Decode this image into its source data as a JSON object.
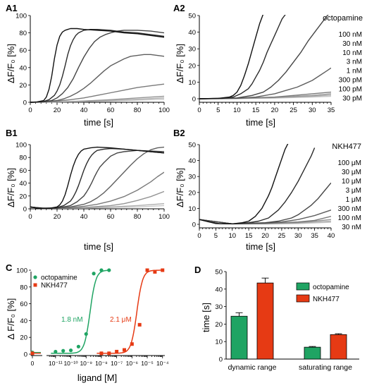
{
  "colors": {
    "octopamine": "#1fa463",
    "nkh": "#e63a14",
    "trace_dark": "#111111",
    "trace_light": "#c8c8c8",
    "bar_oct": "#1fa463",
    "bar_nkh": "#e63a14"
  },
  "chart_data": [
    {
      "id": "A1",
      "panel_label": "A1",
      "type": "line",
      "xlabel": "time [s]",
      "ylabel": "ΔF/F₀ [%]",
      "xlim": [
        0,
        100
      ],
      "ylim": [
        0,
        100
      ],
      "xticks": [
        0,
        20,
        40,
        60,
        80,
        100
      ],
      "yticks": [
        0,
        20,
        40,
        60,
        80,
        100
      ],
      "series": [
        {
          "x": [
            0,
            5,
            10,
            12,
            14,
            16,
            18,
            20,
            22,
            24,
            26,
            28,
            30,
            35,
            40,
            50,
            60,
            70,
            80,
            90,
            100
          ],
          "values": [
            0,
            0.5,
            2,
            6,
            15,
            30,
            50,
            66,
            76,
            81,
            83,
            84,
            85,
            85,
            84,
            83,
            82,
            80,
            79,
            77,
            75
          ]
        },
        {
          "x": [
            0,
            5,
            10,
            14,
            18,
            20,
            22,
            24,
            26,
            28,
            30,
            32,
            34,
            36,
            40,
            45,
            50,
            60,
            70,
            80,
            90,
            100
          ],
          "values": [
            0,
            0.3,
            1,
            3,
            8,
            13,
            20,
            30,
            42,
            55,
            65,
            72,
            77,
            80,
            83,
            84,
            84,
            83,
            81,
            80,
            78,
            76
          ]
        },
        {
          "x": [
            0,
            10,
            16,
            20,
            24,
            28,
            32,
            36,
            40,
            44,
            48,
            52,
            56,
            60,
            65,
            70,
            80,
            90,
            100
          ],
          "values": [
            0,
            0.5,
            2,
            5,
            10,
            17,
            27,
            40,
            52,
            62,
            70,
            75,
            78,
            80,
            82,
            83,
            83,
            82,
            80
          ]
        },
        {
          "x": [
            0,
            10,
            20,
            25,
            30,
            35,
            40,
            45,
            50,
            55,
            60,
            65,
            70,
            75,
            80,
            85,
            90,
            95,
            100
          ],
          "values": [
            0,
            0.5,
            2,
            4,
            7,
            11,
            16,
            22,
            29,
            36,
            42,
            46,
            50,
            53,
            54,
            55,
            55,
            54,
            53
          ]
        },
        {
          "x": [
            0,
            10,
            20,
            30,
            40,
            50,
            60,
            70,
            80,
            90,
            100
          ],
          "values": [
            0,
            0.5,
            1.5,
            3,
            5,
            8,
            11,
            14,
            17,
            19,
            21
          ]
        },
        {
          "x": [
            0,
            20,
            40,
            60,
            80,
            100
          ],
          "values": [
            0,
            0.5,
            1.5,
            3,
            5,
            7
          ]
        },
        {
          "x": [
            0,
            20,
            40,
            60,
            80,
            100
          ],
          "values": [
            0,
            0.5,
            1,
            2,
            3.5,
            5
          ]
        },
        {
          "x": [
            0,
            20,
            40,
            60,
            80,
            100
          ],
          "values": [
            0,
            0.3,
            0.8,
            1.5,
            2.5,
            3.5
          ]
        }
      ]
    },
    {
      "id": "A2",
      "panel_label": "A2",
      "type": "line",
      "xlabel": "time [s]",
      "ylabel": "ΔF/F₀ [%]",
      "xlim": [
        0,
        35
      ],
      "ylim": [
        0,
        50
      ],
      "xticks": [
        0,
        5,
        10,
        15,
        20,
        25,
        30,
        35
      ],
      "yticks": [
        0,
        10,
        20,
        30,
        40,
        50
      ],
      "legend_title": "octopamine",
      "concentrations": [
        "100 nM",
        "30 nM",
        "10 nM",
        "3 nM",
        "1 nM",
        "300 pM",
        "100 pM",
        "30 pM"
      ],
      "series": [
        {
          "x": [
            0,
            5,
            8,
            9,
            10,
            11,
            12,
            13,
            14,
            15,
            16,
            17
          ],
          "values": [
            0,
            0.2,
            1,
            2,
            4,
            8,
            14,
            21,
            29,
            37,
            45,
            51
          ]
        },
        {
          "x": [
            0,
            6,
            9,
            11,
            13,
            14,
            15,
            16,
            17,
            18,
            19,
            20,
            21,
            22,
            23
          ],
          "values": [
            0,
            0.2,
            1,
            3,
            6,
            9,
            13,
            17,
            22,
            28,
            33,
            38,
            43,
            48,
            51
          ]
        },
        {
          "x": [
            0,
            10,
            14,
            17,
            19,
            21,
            23,
            25,
            27,
            29,
            31,
            33,
            34,
            35
          ],
          "values": [
            0,
            0.5,
            2,
            4,
            7,
            11,
            16,
            22,
            28,
            35,
            41,
            47,
            50,
            52
          ]
        },
        {
          "x": [
            0,
            10,
            15,
            20,
            23,
            26,
            28,
            30,
            32,
            34,
            35
          ],
          "values": [
            0,
            0.3,
            1,
            3,
            5,
            7,
            9,
            11,
            14,
            17,
            18.5
          ]
        },
        {
          "x": [
            0,
            10,
            20,
            25,
            30,
            35
          ],
          "values": [
            0,
            0.3,
            1,
            2,
            3,
            4
          ]
        },
        {
          "x": [
            0,
            10,
            20,
            30,
            35
          ],
          "values": [
            0,
            0.2,
            0.8,
            2,
            3
          ]
        },
        {
          "x": [
            0,
            10,
            20,
            30,
            35
          ],
          "values": [
            0,
            0.2,
            0.6,
            1.5,
            2.2
          ]
        },
        {
          "x": [
            0,
            10,
            20,
            30,
            35
          ],
          "values": [
            0,
            0.1,
            0.4,
            1,
            1.5
          ]
        }
      ]
    },
    {
      "id": "B1",
      "panel_label": "B1",
      "type": "line",
      "xlabel": "time [s]",
      "ylabel": "ΔF/F₀ [%]",
      "xlim": [
        0,
        100
      ],
      "ylim": [
        0,
        100
      ],
      "xticks": [
        0,
        20,
        40,
        60,
        80,
        100
      ],
      "yticks": [
        0,
        20,
        40,
        60,
        80,
        100
      ],
      "series": [
        {
          "x": [
            0,
            5,
            10,
            15,
            20,
            22,
            24,
            26,
            28,
            30,
            32,
            34,
            36,
            38,
            40,
            45,
            50,
            60,
            70,
            80,
            90,
            100
          ],
          "values": [
            3,
            1,
            0.5,
            1,
            3,
            6,
            12,
            22,
            36,
            52,
            66,
            77,
            85,
            90,
            93,
            95,
            96,
            95,
            93,
            91,
            89,
            87
          ]
        },
        {
          "x": [
            0,
            10,
            20,
            25,
            30,
            32,
            34,
            36,
            38,
            40,
            42,
            44,
            46,
            48,
            50,
            55,
            60,
            70,
            80,
            90,
            100
          ],
          "values": [
            3,
            0.5,
            2,
            5,
            12,
            18,
            26,
            36,
            48,
            60,
            70,
            78,
            84,
            88,
            91,
            93,
            94,
            93,
            91,
            89,
            87
          ]
        },
        {
          "x": [
            0,
            10,
            20,
            30,
            35,
            40,
            42,
            44,
            46,
            48,
            50,
            52,
            55,
            58,
            60,
            65,
            70,
            80,
            90,
            100
          ],
          "values": [
            3,
            0.5,
            1,
            5,
            11,
            20,
            26,
            33,
            41,
            50,
            58,
            65,
            72,
            78,
            82,
            87,
            89,
            91,
            90,
            89
          ]
        },
        {
          "x": [
            0,
            10,
            20,
            30,
            40,
            45,
            50,
            55,
            60,
            65,
            70,
            75,
            80,
            85,
            90,
            95,
            100
          ],
          "values": [
            3,
            0.5,
            1,
            3,
            7,
            11,
            17,
            25,
            35,
            46,
            57,
            68,
            78,
            86,
            92,
            95,
            96
          ]
        },
        {
          "x": [
            0,
            10,
            20,
            30,
            40,
            50,
            60,
            70,
            80,
            90,
            95,
            100
          ],
          "values": [
            3,
            0.5,
            1,
            2,
            4,
            7,
            12,
            19,
            29,
            42,
            50,
            57
          ]
        },
        {
          "x": [
            0,
            20,
            40,
            60,
            70,
            80,
            90,
            100
          ],
          "values": [
            2,
            1,
            2,
            5,
            8,
            13,
            19,
            27
          ]
        },
        {
          "x": [
            0,
            20,
            40,
            60,
            80,
            100
          ],
          "values": [
            2,
            1,
            1.5,
            3,
            5,
            8
          ]
        },
        {
          "x": [
            0,
            20,
            40,
            60,
            80,
            100
          ],
          "values": [
            2,
            1,
            1,
            2,
            3,
            5
          ]
        }
      ]
    },
    {
      "id": "B2",
      "panel_label": "B2",
      "type": "line",
      "xlabel": "time [s]",
      "ylabel": "ΔF/F₀ [%]",
      "xlim": [
        0,
        40
      ],
      "ylim": [
        0,
        50
      ],
      "xticks": [
        0,
        5,
        10,
        15,
        20,
        25,
        30,
        35,
        40
      ],
      "yticks": [
        0,
        10,
        20,
        30,
        40,
        50
      ],
      "legend_title": "NKH477",
      "concentrations": [
        "100 μM",
        "30 μM",
        "10 μM",
        "3 μM",
        "1 μM",
        "300 nM",
        "100 nM",
        "30 nM"
      ],
      "series": [
        {
          "x": [
            0,
            3,
            6,
            10,
            13,
            15,
            17,
            19,
            20,
            21,
            22,
            23,
            24,
            25,
            26,
            27
          ],
          "values": [
            3,
            1.5,
            0.5,
            0.3,
            1,
            2,
            5,
            10,
            14,
            18,
            23,
            29,
            35,
            41,
            47,
            51
          ]
        },
        {
          "x": [
            0,
            5,
            10,
            15,
            18,
            21,
            24,
            26,
            28,
            30,
            32,
            34,
            35
          ],
          "values": [
            3,
            0.5,
            0.3,
            1,
            2,
            4,
            9,
            14,
            20,
            27,
            35,
            43,
            48
          ]
        },
        {
          "x": [
            0,
            10,
            20,
            24,
            28,
            30,
            32,
            34,
            36,
            38,
            40
          ],
          "values": [
            3,
            0.3,
            1,
            2,
            4,
            6,
            9,
            12,
            16,
            21,
            26
          ]
        },
        {
          "x": [
            0,
            10,
            20,
            25,
            30,
            35,
            40
          ],
          "values": [
            3,
            0.3,
            0.8,
            1.5,
            3,
            5.5,
            9
          ]
        },
        {
          "x": [
            0,
            10,
            20,
            30,
            35,
            40
          ],
          "values": [
            3,
            0.3,
            0.6,
            1.5,
            2.5,
            5
          ]
        },
        {
          "x": [
            0,
            10,
            20,
            30,
            40
          ],
          "values": [
            3,
            0.3,
            0.4,
            1,
            3
          ]
        },
        {
          "x": [
            0,
            10,
            20,
            30,
            40
          ],
          "values": [
            3,
            0.3,
            0.3,
            0.8,
            2
          ]
        },
        {
          "x": [
            0,
            10,
            20,
            30,
            40
          ],
          "values": [
            3,
            0.2,
            0.2,
            0.5,
            1.3
          ]
        }
      ]
    },
    {
      "id": "C",
      "panel_label": "C",
      "type": "scatter",
      "xlabel": "ligand [M]",
      "ylabel": "Δ F/F₀ [%]",
      "xscale": "log",
      "ylim": [
        0,
        100
      ],
      "yticks": [
        0,
        20,
        40,
        60,
        80,
        100
      ],
      "x_tick_labels": [
        "0",
        "10⁻¹¹",
        "10⁻¹⁰",
        "10⁻⁹",
        "10⁻⁸",
        "10⁻⁷",
        "10⁻⁶",
        "10⁻⁵",
        "10⁻⁴"
      ],
      "legend": [
        "octopamine",
        "NKH477"
      ],
      "annotations": [
        {
          "text": "1.8 nM",
          "series": "octopamine"
        },
        {
          "text": "2.1 μM",
          "series": "NKH477"
        }
      ],
      "series": [
        {
          "name": "octopamine",
          "marker": "circle",
          "zero_point": 2,
          "log_x": [
            -11,
            -10.5,
            -10,
            -9.5,
            -9,
            -8.5,
            -8,
            -7.5
          ],
          "values": [
            3,
            4,
            4.5,
            9,
            24,
            96,
            100,
            100
          ],
          "ec50_log": -8.74,
          "hill": 2.3
        },
        {
          "name": "NKH477",
          "marker": "square",
          "zero_point": 1,
          "log_x": [
            -8,
            -7.5,
            -7,
            -6.5,
            -6,
            -5.5,
            -5,
            -4.5,
            -4
          ],
          "values": [
            1,
            1,
            3,
            5,
            12,
            35,
            100,
            98,
            100
          ],
          "ec50_log": -5.68,
          "hill": 2.3
        }
      ]
    },
    {
      "id": "D",
      "panel_label": "D",
      "type": "bar",
      "ylabel": "time [s]",
      "ylim": [
        0,
        50
      ],
      "yticks": [
        0,
        10,
        20,
        30,
        40,
        50
      ],
      "categories": [
        "dynamic range",
        "saturating range"
      ],
      "legend": [
        "octopamine",
        "NKH477"
      ],
      "series": [
        {
          "name": "octopamine",
          "values": [
            24.5,
            6.8
          ],
          "errors": [
            2.0,
            0.4
          ]
        },
        {
          "name": "NKH477",
          "values": [
            43.5,
            14.0
          ],
          "errors": [
            2.8,
            0.5
          ]
        }
      ]
    }
  ]
}
